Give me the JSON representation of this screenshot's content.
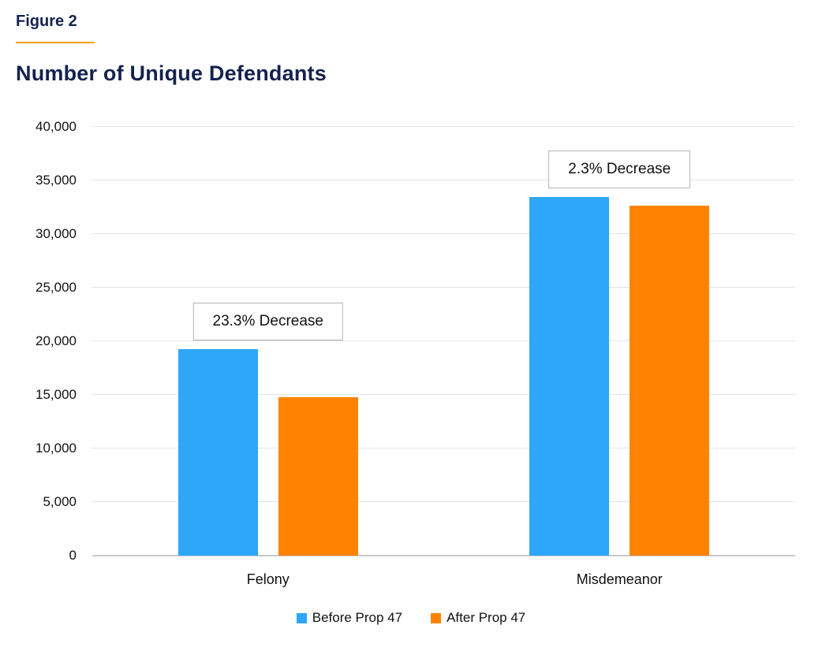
{
  "header": {
    "figure_label": "Figure 2",
    "title": "Number of Unique Defendants"
  },
  "chart_data": {
    "type": "bar",
    "title": "Number of Unique Defendants",
    "categories": [
      "Felony",
      "Misdemeanor"
    ],
    "series": [
      {
        "name": "Before Prop 47",
        "color": "#2EA7FA",
        "values": [
          19250,
          33450
        ]
      },
      {
        "name": "After Prop 47",
        "color": "#FF8300",
        "values": [
          14765,
          32680
        ]
      }
    ],
    "annotations": [
      {
        "category": "Felony",
        "label": "23.3% Decrease"
      },
      {
        "category": "Misdemeanor",
        "label": "2.3% Decrease"
      }
    ],
    "xlabel": "",
    "ylabel": "",
    "ylim": [
      0,
      40000
    ],
    "ytick_step": 5000,
    "ytick_labels": [
      "0",
      "5,000",
      "10,000",
      "15,000",
      "20,000",
      "25,000",
      "30,000",
      "35,000",
      "40,000"
    ],
    "grid": "horizontal",
    "legend_position": "bottom"
  },
  "legend": {
    "items": [
      {
        "label": "Before Prop 47",
        "color": "#2EA7FA"
      },
      {
        "label": "After Prop 47",
        "color": "#FF8300"
      }
    ]
  },
  "colors": {
    "title_navy": "#14224E",
    "accent_underline": "#F6A01E",
    "gridline": "#E3E3E3",
    "axis_baseline": "#C9C9C9",
    "annotation_border": "#B5B5B5",
    "text": "#111111"
  }
}
